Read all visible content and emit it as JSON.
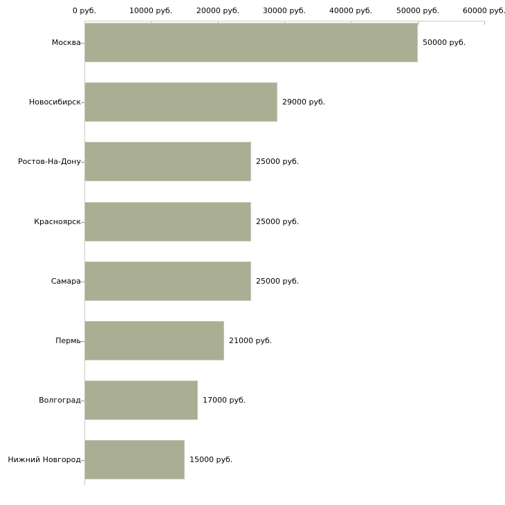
{
  "chart_data": {
    "type": "bar",
    "orientation": "horizontal",
    "title": "",
    "categories": [
      "Москва",
      "Новосибирск",
      "Ростов-На-Дону",
      "Красноярск",
      "Самара",
      "Пермь",
      "Волгоград",
      "Нижний Новгород"
    ],
    "values": [
      50000,
      29000,
      25000,
      25000,
      25000,
      21000,
      17000,
      15000
    ],
    "value_labels": [
      "50000 руб.",
      "29000 руб.",
      "25000 руб.",
      "25000 руб.",
      "25000 руб.",
      "21000 руб.",
      "17000 руб.",
      "15000 руб."
    ],
    "unit": "руб.",
    "x_axis": {
      "position": "top",
      "min": 0,
      "max": 60000,
      "ticks": [
        0,
        10000,
        20000,
        30000,
        40000,
        50000,
        60000
      ],
      "tick_labels": [
        "0 руб.",
        "10000 руб.",
        "20000 руб.",
        "30000 руб.",
        "40000 руб.",
        "50000 руб.",
        "60000 руб."
      ]
    },
    "legend": false,
    "grid": false,
    "colors": {
      "bar_fill": "#aaae93",
      "bar_border": "#c9ccbc",
      "axis_line": "#ccccc0",
      "axis_tick": "#b5b8a2",
      "category_tick": "#8c8c8c",
      "text": "#000000",
      "background": "#ffffff"
    }
  }
}
